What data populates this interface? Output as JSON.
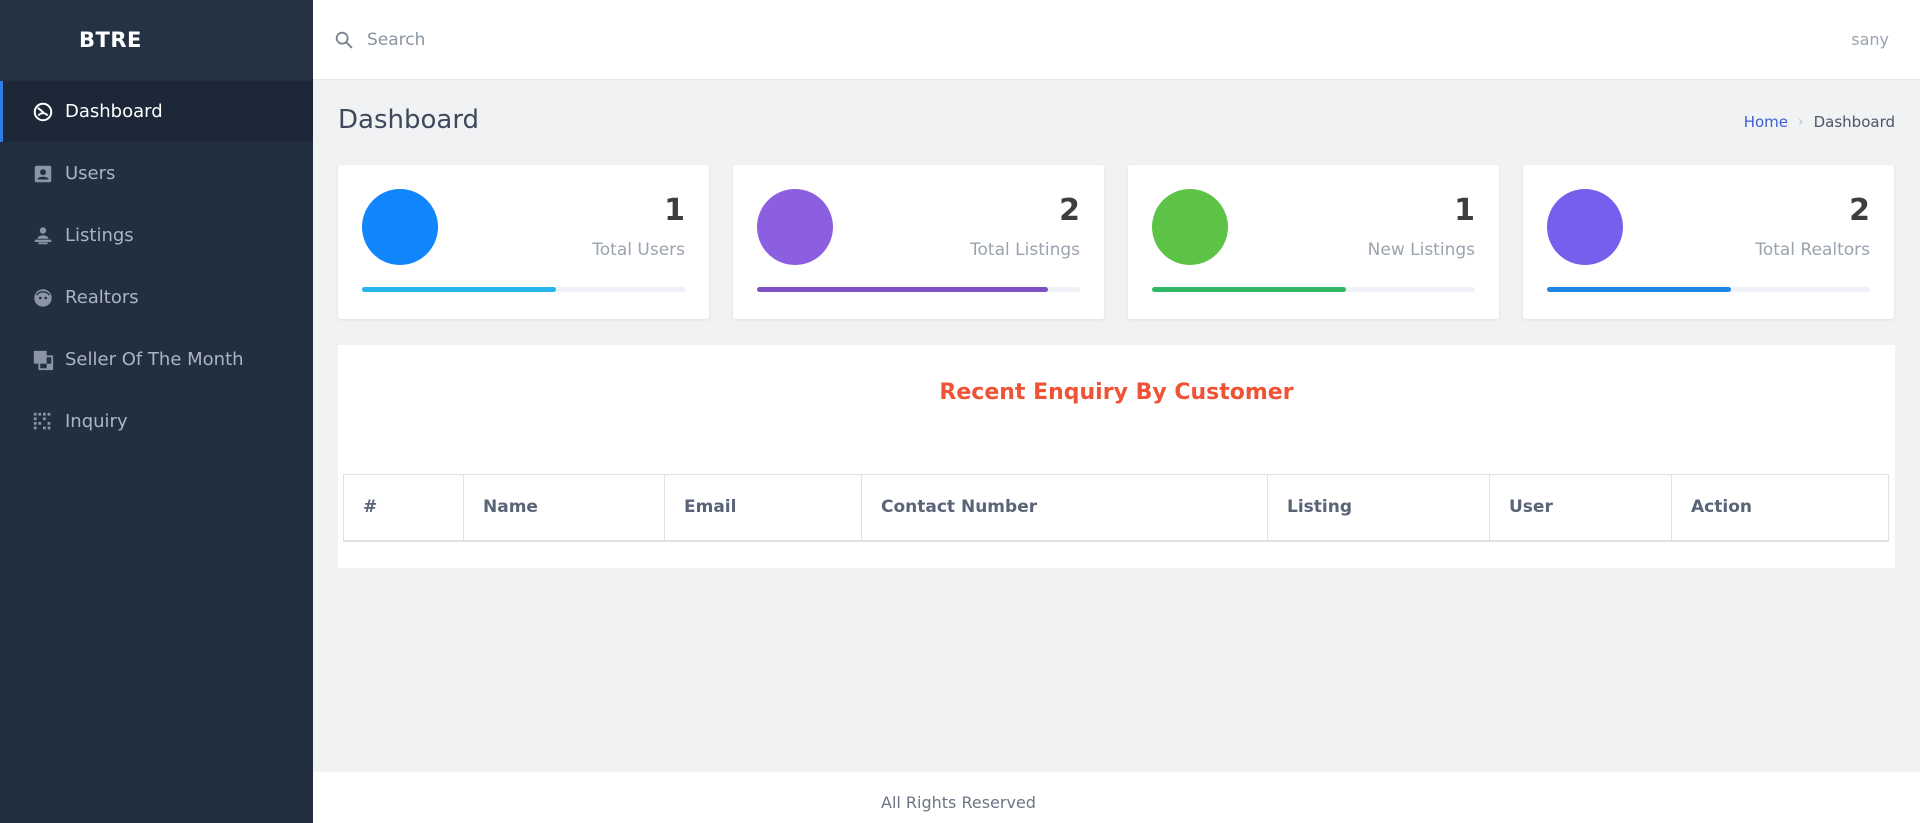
{
  "brand": "BTRE",
  "sidebar": {
    "items": [
      {
        "label": "Dashboard",
        "icon": "dashboard-icon",
        "active": true
      },
      {
        "label": "Users",
        "icon": "user-card-icon",
        "active": false
      },
      {
        "label": "Listings",
        "icon": "person-desk-icon",
        "active": false
      },
      {
        "label": "Realtors",
        "icon": "face-icon",
        "active": false
      },
      {
        "label": "Seller Of The Month",
        "icon": "stacked-squares-icon",
        "active": false
      },
      {
        "label": "Inquiry",
        "icon": "grid-icon",
        "active": false
      }
    ]
  },
  "topbar": {
    "search_placeholder": "Search",
    "user": "sany"
  },
  "page": {
    "title": "Dashboard",
    "breadcrumb": {
      "home": "Home",
      "current": "Dashboard"
    }
  },
  "stats": [
    {
      "value": "1",
      "label": "Total Users",
      "circle_color": "#1185fb",
      "bar_color": "#27b5ed",
      "progress": 0.6
    },
    {
      "value": "2",
      "label": "Total Listings",
      "circle_color": "#8c5fe0",
      "bar_color": "#7d50c4",
      "progress": 0.9
    },
    {
      "value": "1",
      "label": "New Listings",
      "circle_color": "#5cc346",
      "bar_color": "#2fb763",
      "progress": 0.6
    },
    {
      "value": "2",
      "label": "Total Realtors",
      "circle_color": "#7460ec",
      "bar_color": "#1b86e3",
      "progress": 0.57
    }
  ],
  "enquiries": {
    "title": "Recent Enquiry By Customer",
    "title_color": "#ef5234",
    "columns": [
      "#",
      "Name",
      "Email",
      "Contact Number",
      "Listing",
      "User",
      "Action"
    ],
    "rows": []
  },
  "footer": {
    "text": "All Rights Reserved"
  }
}
